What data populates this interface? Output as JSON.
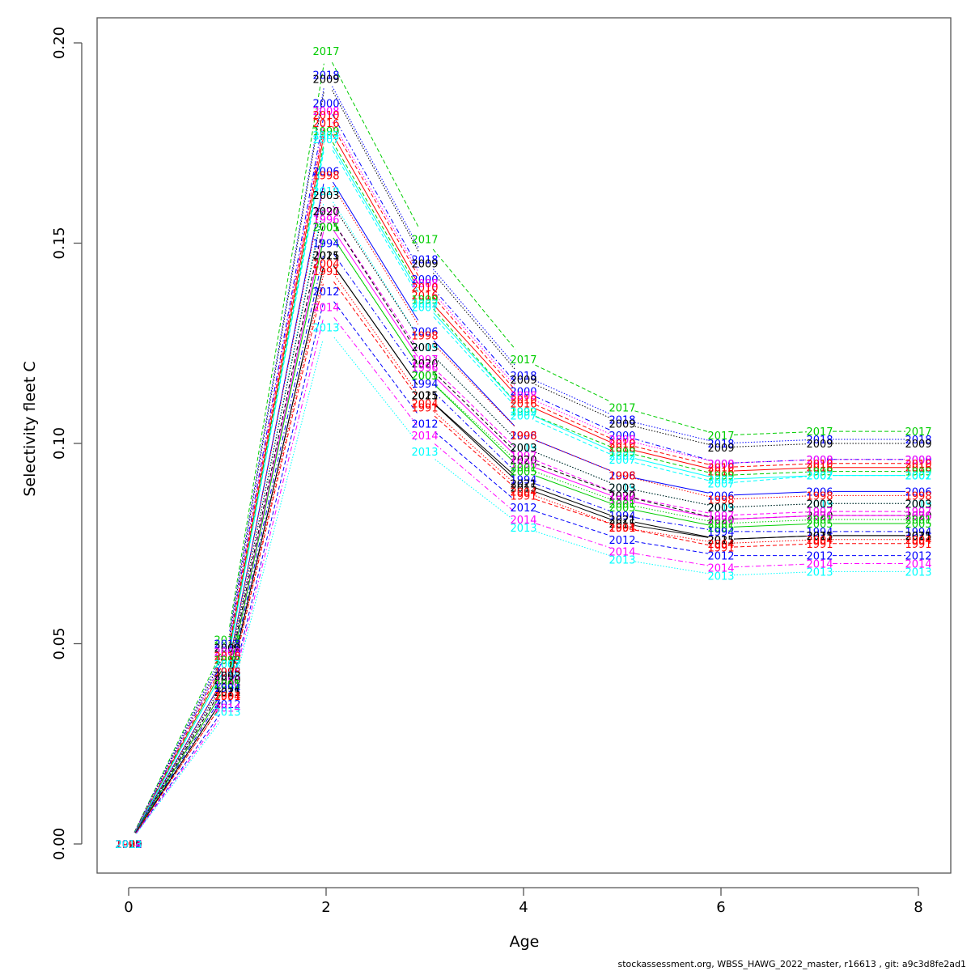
{
  "chart_data": {
    "type": "line",
    "title": "",
    "xlabel": "Age",
    "ylabel": "Selectivity fleet C",
    "xlim": [
      -0.3,
      8.3
    ],
    "ylim": [
      -0.0075,
      0.2075
    ],
    "x": [
      0,
      1,
      2,
      3,
      4,
      5,
      6,
      7,
      8
    ],
    "x_ticks": [
      "0",
      "2",
      "4",
      "6",
      "8"
    ],
    "x_tick_values": [
      0,
      2,
      4,
      6,
      8
    ],
    "y_ticks": [
      "0.00",
      "0.05",
      "0.10",
      "0.15",
      "0.20"
    ],
    "y_tick_values": [
      0.0,
      0.05,
      0.1,
      0.15,
      0.2
    ],
    "grid": false,
    "legend": "none (year labels drawn at each point)",
    "series": [
      {
        "name": "2017",
        "color": "#00cd00",
        "dash": "dashed",
        "values": [
          0.0,
          0.051,
          0.198,
          0.151,
          0.121,
          0.109,
          0.102,
          0.103,
          0.103
        ]
      },
      {
        "name": "2018",
        "color": "#0000ff",
        "dash": "dotted",
        "values": [
          0.0,
          0.05,
          0.192,
          0.146,
          0.117,
          0.106,
          0.1,
          0.101,
          0.101
        ]
      },
      {
        "name": "2009",
        "color": "#000000",
        "dash": "dotted",
        "values": [
          0.0,
          0.049,
          0.191,
          0.145,
          0.116,
          0.105,
          0.099,
          0.1,
          0.1
        ]
      },
      {
        "name": "2000",
        "color": "#0000ff",
        "dash": "dashdot",
        "values": [
          0.0,
          0.048,
          0.185,
          0.141,
          0.113,
          0.102,
          0.095,
          0.096,
          0.096
        ]
      },
      {
        "name": "2008",
        "color": "#ff00ff",
        "dash": "dotted",
        "values": [
          0.0,
          0.048,
          0.183,
          0.14,
          0.112,
          0.101,
          0.095,
          0.096,
          0.096
        ]
      },
      {
        "name": "2010",
        "color": "#ff0000",
        "dash": "dashed",
        "values": [
          0.0,
          0.047,
          0.182,
          0.139,
          0.111,
          0.1,
          0.094,
          0.095,
          0.095
        ]
      },
      {
        "name": "2016",
        "color": "#ff0000",
        "dash": "solid",
        "values": [
          0.0,
          0.046,
          0.18,
          0.137,
          0.11,
          0.099,
          0.093,
          0.094,
          0.094
        ]
      },
      {
        "name": "1999",
        "color": "#00cd00",
        "dash": "dashed",
        "values": [
          0.0,
          0.046,
          0.178,
          0.136,
          0.108,
          0.098,
          0.092,
          0.093,
          0.093
        ]
      },
      {
        "name": "2002",
        "color": "#00ffff",
        "dash": "solid",
        "values": [
          0.0,
          0.045,
          0.177,
          0.135,
          0.108,
          0.097,
          0.091,
          0.092,
          0.092
        ]
      },
      {
        "name": "2007",
        "color": "#00ffff",
        "dash": "dashed",
        "values": [
          0.0,
          0.045,
          0.176,
          0.134,
          0.107,
          0.096,
          0.09,
          0.092,
          0.092
        ]
      },
      {
        "name": "2006",
        "color": "#0000ff",
        "dash": "solid",
        "values": [
          0.0,
          0.043,
          0.168,
          0.128,
          0.102,
          0.092,
          0.087,
          0.088,
          0.088
        ]
      },
      {
        "name": "1998",
        "color": "#ff0000",
        "dash": "dotted",
        "values": [
          0.0,
          0.043,
          0.167,
          0.127,
          0.102,
          0.092,
          0.086,
          0.087,
          0.087
        ]
      },
      {
        "name": "2019",
        "color": "#00ffff",
        "dash": "dotted",
        "values": [
          0.0,
          0.042,
          0.163,
          0.124,
          0.099,
          0.089,
          0.084,
          0.085,
          0.085
        ]
      },
      {
        "name": "2003",
        "color": "#000000",
        "dash": "dotted",
        "values": [
          0.0,
          0.042,
          0.162,
          0.124,
          0.099,
          0.089,
          0.084,
          0.085,
          0.085
        ]
      },
      {
        "name": "1997",
        "color": "#ff00ff",
        "dash": "dashed",
        "values": [
          0.0,
          0.041,
          0.158,
          0.121,
          0.097,
          0.087,
          0.082,
          0.083,
          0.083
        ]
      },
      {
        "name": "2020",
        "color": "#000000",
        "dash": "dashed",
        "values": [
          0.0,
          0.041,
          0.158,
          0.12,
          0.096,
          0.087,
          0.081,
          0.082,
          0.082
        ]
      },
      {
        "name": "1996",
        "color": "#ff00ff",
        "dash": "solid",
        "values": [
          0.0,
          0.04,
          0.156,
          0.119,
          0.095,
          0.086,
          0.081,
          0.082,
          0.082
        ]
      },
      {
        "name": "2001",
        "color": "#00cd00",
        "dash": "dotted",
        "values": [
          0.0,
          0.04,
          0.154,
          0.117,
          0.094,
          0.085,
          0.08,
          0.081,
          0.081
        ]
      },
      {
        "name": "2005",
        "color": "#00cd00",
        "dash": "solid",
        "values": [
          0.0,
          0.04,
          0.154,
          0.117,
          0.093,
          0.084,
          0.079,
          0.08,
          0.08
        ]
      },
      {
        "name": "1994",
        "color": "#0000ff",
        "dash": "dashdot",
        "values": [
          0.0,
          0.039,
          0.15,
          0.115,
          0.091,
          0.082,
          0.078,
          0.078,
          0.078
        ]
      },
      {
        "name": "2021",
        "color": "#000000",
        "dash": "solid",
        "values": [
          0.0,
          0.038,
          0.147,
          0.112,
          0.09,
          0.081,
          0.076,
          0.077,
          0.077
        ]
      },
      {
        "name": "2015",
        "color": "#000000",
        "dash": "solid",
        "values": [
          0.0,
          0.038,
          0.147,
          0.112,
          0.089,
          0.08,
          0.076,
          0.077,
          0.077
        ]
      },
      {
        "name": "2004",
        "color": "#ff0000",
        "dash": "dotted",
        "values": [
          0.0,
          0.037,
          0.145,
          0.11,
          0.088,
          0.079,
          0.075,
          0.076,
          0.076
        ]
      },
      {
        "name": "1991",
        "color": "#ff0000",
        "dash": "dashed",
        "values": [
          0.0,
          0.037,
          0.143,
          0.109,
          0.087,
          0.079,
          0.074,
          0.075,
          0.075
        ]
      },
      {
        "name": "2012",
        "color": "#0000ff",
        "dash": "dashed",
        "values": [
          0.0,
          0.035,
          0.138,
          0.105,
          0.084,
          0.076,
          0.072,
          0.072,
          0.072
        ]
      },
      {
        "name": "2014",
        "color": "#ff00ff",
        "dash": "dashdot",
        "values": [
          0.0,
          0.034,
          0.134,
          0.102,
          0.081,
          0.073,
          0.069,
          0.07,
          0.07
        ]
      },
      {
        "name": "2013",
        "color": "#00ffff",
        "dash": "dotted",
        "values": [
          0.0,
          0.033,
          0.129,
          0.098,
          0.079,
          0.071,
          0.067,
          0.068,
          0.068
        ]
      }
    ]
  },
  "footer": {
    "text": "stockassessment.org, WBSS_HAWG_2022_master, r16613 , git: a9c3d8fe2ad1"
  }
}
